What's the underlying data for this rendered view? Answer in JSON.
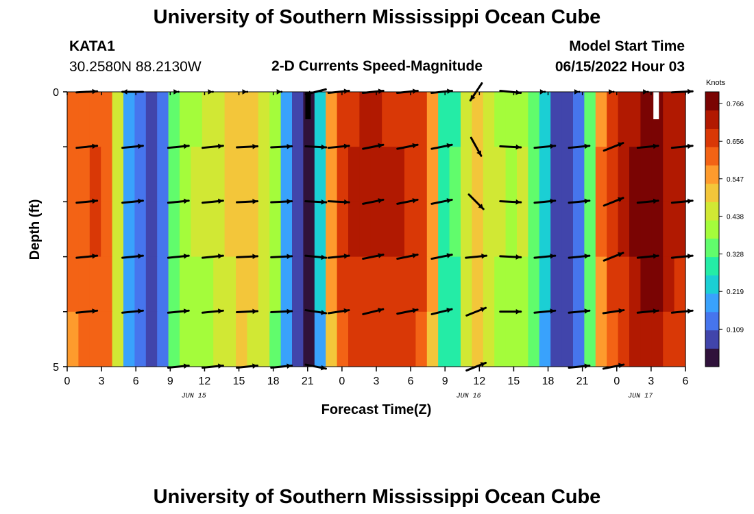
{
  "header": {
    "title": "University of Southern Mississippi Ocean Cube",
    "station_id": "KATA1",
    "station_coords": "30.2580N  88.2130W",
    "plot_title": "2-D Currents Speed-Magnitude",
    "model_label": "Model Start Time",
    "model_time": "06/15/2022 Hour 03"
  },
  "footer": {
    "title": "University of Southern Mississippi Ocean Cube"
  },
  "chart_data": {
    "type": "heatmap",
    "title": "2-D Currents Speed-Magnitude",
    "xlabel": "Forecast Time(Z)",
    "ylabel": "Depth (ft)",
    "x_start_hour": 0,
    "x_end_hour": 54,
    "hours_per_column": 1,
    "x_tick_labels": [
      "0",
      "3",
      "6",
      "9",
      "12",
      "15",
      "18",
      "21",
      "0",
      "3",
      "6",
      "9",
      "12",
      "15",
      "18",
      "21",
      "0",
      "3",
      "6"
    ],
    "x_ticks_every_hours": 3,
    "date_labels": [
      {
        "label": "JUN 15",
        "hour": 11
      },
      {
        "label": "JUN 16",
        "hour": 35
      },
      {
        "label": "JUN 17",
        "hour": 50
      }
    ],
    "depth_range": [
      0,
      5
    ],
    "y_tick_labels": [
      "0",
      "5"
    ],
    "depth_levels": 5,
    "colorbar": {
      "unit": "Knots",
      "ticks": [
        "0.766",
        "0.656",
        "0.547",
        "0.438",
        "0.328",
        "0.219",
        "0.109"
      ],
      "tick_values": [
        0.766,
        0.656,
        0.547,
        0.438,
        0.328,
        0.219,
        0.109
      ],
      "range": [
        0.0,
        0.8
      ]
    },
    "speed_knots_surface_by_hour": [
      0.6,
      0.62,
      0.63,
      0.62,
      0.45,
      0.2,
      0.12,
      0.1,
      0.15,
      0.35,
      0.4,
      0.42,
      0.43,
      0.45,
      0.48,
      0.5,
      0.49,
      0.45,
      0.38,
      0.18,
      0.06,
      0.02,
      0.22,
      0.55,
      0.65,
      0.68,
      0.7,
      0.7,
      0.69,
      0.68,
      0.67,
      0.65,
      0.55,
      0.3,
      0.32,
      0.45,
      0.5,
      0.45,
      0.42,
      0.4,
      0.42,
      0.35,
      0.22,
      0.1,
      0.06,
      0.15,
      0.35,
      0.58,
      0.66,
      0.7,
      0.74,
      0.76,
      0.76,
      0.72,
      0.7
    ],
    "depth_factors": [
      1.0,
      1.03,
      1.02,
      0.99,
      0.96
    ],
    "vectors": {
      "hours": [
        1,
        5,
        9,
        12,
        15,
        18,
        21,
        23,
        26,
        29,
        32,
        35,
        38,
        41,
        44,
        47,
        50,
        53
      ],
      "levels": [
        {
          "depth_ft": 0.0,
          "u": [
            1,
            -1,
            0,
            0,
            0,
            0,
            -1,
            1,
            1,
            1,
            1,
            -0.6,
            1,
            0,
            0,
            0,
            0,
            1
          ],
          "v": [
            0.05,
            0,
            0,
            0,
            0,
            0,
            -0.25,
            0.1,
            0.1,
            0.1,
            0.1,
            -0.9,
            -0.1,
            0,
            0,
            0,
            0,
            0.05
          ]
        },
        {
          "depth_ft": 1.0,
          "u": [
            1,
            1,
            1,
            1,
            1,
            1,
            1,
            1,
            1,
            1,
            1,
            0.5,
            1,
            1,
            1,
            1,
            1,
            1
          ],
          "v": [
            0.1,
            0.1,
            0.1,
            0.1,
            0.05,
            0.05,
            -0.05,
            0.1,
            0.2,
            0.2,
            0.2,
            -0.9,
            -0.05,
            0.1,
            0.1,
            0.4,
            0.1,
            0.1
          ]
        },
        {
          "depth_ft": 2.0,
          "u": [
            1,
            1,
            1,
            1,
            1,
            1,
            1,
            1,
            1,
            1,
            1,
            0.7,
            1,
            1,
            1,
            1,
            1,
            1
          ],
          "v": [
            0.1,
            0.1,
            0.1,
            0.1,
            0.05,
            0.05,
            -0.05,
            -0.05,
            0.2,
            0.2,
            0.2,
            -0.7,
            -0.05,
            0.1,
            0.1,
            0.4,
            0.1,
            0.1
          ]
        },
        {
          "depth_ft": 3.0,
          "u": [
            1,
            1,
            1,
            1,
            1,
            1,
            1,
            1,
            1,
            1,
            1,
            1,
            1,
            1,
            1,
            1,
            1,
            1
          ],
          "v": [
            0.1,
            0.1,
            0.1,
            0.1,
            0.05,
            0.05,
            -0.1,
            0.1,
            0.2,
            0.2,
            0.2,
            0.1,
            -0.05,
            0.1,
            0.1,
            0.4,
            0.1,
            0.1
          ]
        },
        {
          "depth_ft": 4.0,
          "u": [
            1,
            1,
            1,
            1,
            1,
            1,
            1,
            1,
            1,
            1,
            1,
            1,
            1,
            1,
            1,
            1,
            1,
            1
          ],
          "v": [
            0.1,
            0.1,
            0.1,
            0.1,
            0.05,
            0.05,
            -0.15,
            0.15,
            0.25,
            0.2,
            0.25,
            0.4,
            0,
            0.1,
            0.1,
            0.15,
            0.1,
            0.1
          ]
        },
        {
          "depth_ft": 5.0,
          "u": [
            null,
            null,
            1,
            1,
            1,
            1,
            1,
            null,
            null,
            null,
            null,
            1,
            null,
            null,
            1,
            1,
            null,
            null
          ],
          "v": [
            0,
            0,
            0.1,
            0.1,
            0.1,
            0.1,
            -0.2,
            0,
            0,
            0,
            0,
            0.4,
            0,
            0,
            0.1,
            0.2,
            0,
            0
          ]
        }
      ]
    },
    "colors": {
      "scale": [
        "#30123b",
        "#4145ab",
        "#4675ed",
        "#39a2fc",
        "#1bcfd4",
        "#24eca6",
        "#61fc6c",
        "#a4fc3b",
        "#d1e834",
        "#f3c63a",
        "#fe9b2d",
        "#f36315",
        "#d93806",
        "#b11901",
        "#7a0403"
      ],
      "missing_early": "#000000",
      "missing_late": "#ffffff",
      "arrow": "#000000"
    }
  }
}
